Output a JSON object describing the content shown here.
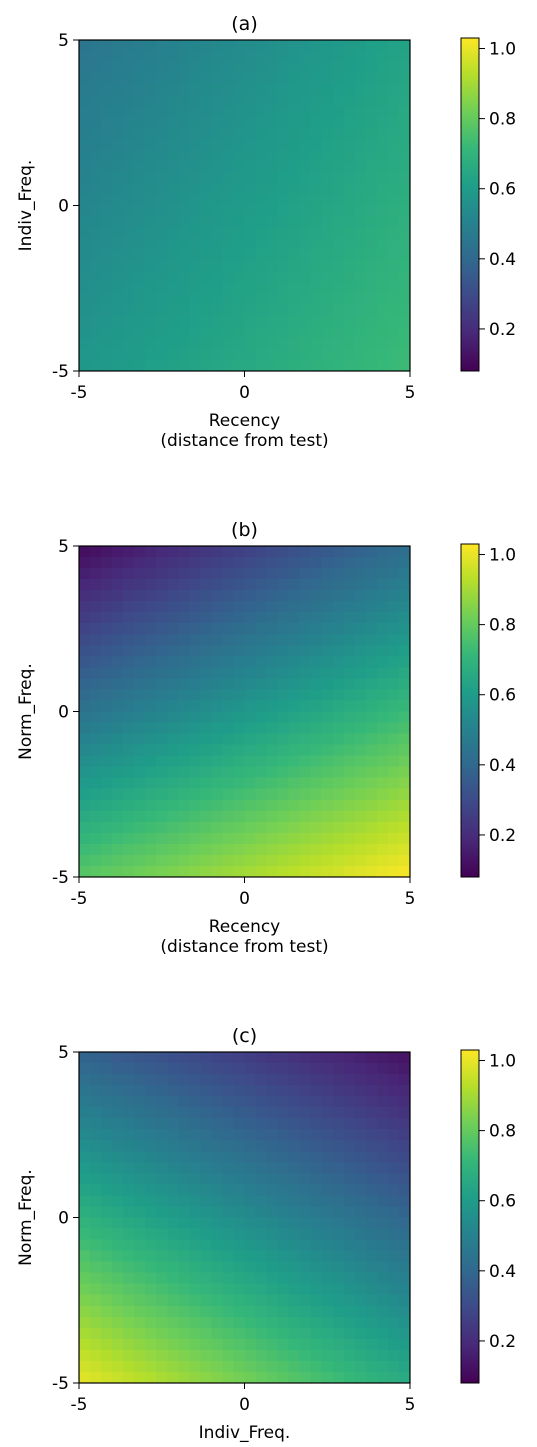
{
  "colormap": "viridis",
  "colormap_stops": [
    "#440154",
    "#482878",
    "#3e4989",
    "#31688e",
    "#26828e",
    "#1f9e89",
    "#35b779",
    "#6ece58",
    "#b5de2b",
    "#fde725"
  ],
  "chart_data": [
    {
      "type": "heatmap",
      "title": "(a)",
      "xlabel_lines": [
        "Recency",
        "(distance from test)"
      ],
      "ylabel": "Indiv_Freq.",
      "xlim": [
        -5,
        5
      ],
      "ylim": [
        -5,
        5
      ],
      "xticks": [
        -5,
        0,
        5
      ],
      "xtick_labels": [
        "-5",
        "0",
        "5"
      ],
      "yticks": [
        -5,
        0,
        5
      ],
      "ytick_labels": [
        "-5",
        "0",
        "5"
      ],
      "z_corners": {
        "x_min_y_max": 0.45,
        "x_max_y_max": 0.63,
        "x_min_y_min": 0.58,
        "x_max_y_min": 0.73
      },
      "colorbar": {
        "range": [
          0.08,
          1.03
        ],
        "ticks": [
          0.2,
          0.4,
          0.6,
          0.8,
          1.0
        ],
        "tick_labels": [
          "0.2",
          "0.4",
          "0.6",
          "0.8",
          "1.0"
        ]
      }
    },
    {
      "type": "heatmap",
      "title": "(b)",
      "xlabel_lines": [
        "Recency",
        "(distance from test)"
      ],
      "ylabel": "Norm_Freq.",
      "xlim": [
        -5,
        5
      ],
      "ylim": [
        -5,
        5
      ],
      "xticks": [
        -5,
        0,
        5
      ],
      "xtick_labels": [
        "-5",
        "0",
        "5"
      ],
      "yticks": [
        -5,
        0,
        5
      ],
      "ytick_labels": [
        "-5",
        "0",
        "5"
      ],
      "z_corners": {
        "x_min_y_max": 0.1,
        "x_max_y_max": 0.42,
        "x_min_y_min": 0.78,
        "x_max_y_min": 1.03
      },
      "colorbar": {
        "range": [
          0.08,
          1.03
        ],
        "ticks": [
          0.2,
          0.4,
          0.6,
          0.8,
          1.0
        ],
        "tick_labels": [
          "0.2",
          "0.4",
          "0.6",
          "0.8",
          "1.0"
        ]
      }
    },
    {
      "type": "heatmap",
      "title": "(c)",
      "xlabel_lines": [
        "Indiv_Freq."
      ],
      "ylabel": "Norm_Freq.",
      "xlim": [
        -5,
        5
      ],
      "ylim": [
        -5,
        5
      ],
      "xticks": [
        -5,
        0,
        5
      ],
      "xtick_labels": [
        "-5",
        "0",
        "5"
      ],
      "yticks": [
        -5,
        0,
        5
      ],
      "ytick_labels": [
        "-5",
        "0",
        "5"
      ],
      "z_corners": {
        "x_min_y_max": 0.38,
        "x_max_y_max": 0.12,
        "x_min_y_min": 1.0,
        "x_max_y_min": 0.66
      },
      "colorbar": {
        "range": [
          0.08,
          1.03
        ],
        "ticks": [
          0.2,
          0.4,
          0.6,
          0.8,
          1.0
        ],
        "tick_labels": [
          "0.2",
          "0.4",
          "0.6",
          "0.8",
          "1.0"
        ]
      }
    }
  ]
}
